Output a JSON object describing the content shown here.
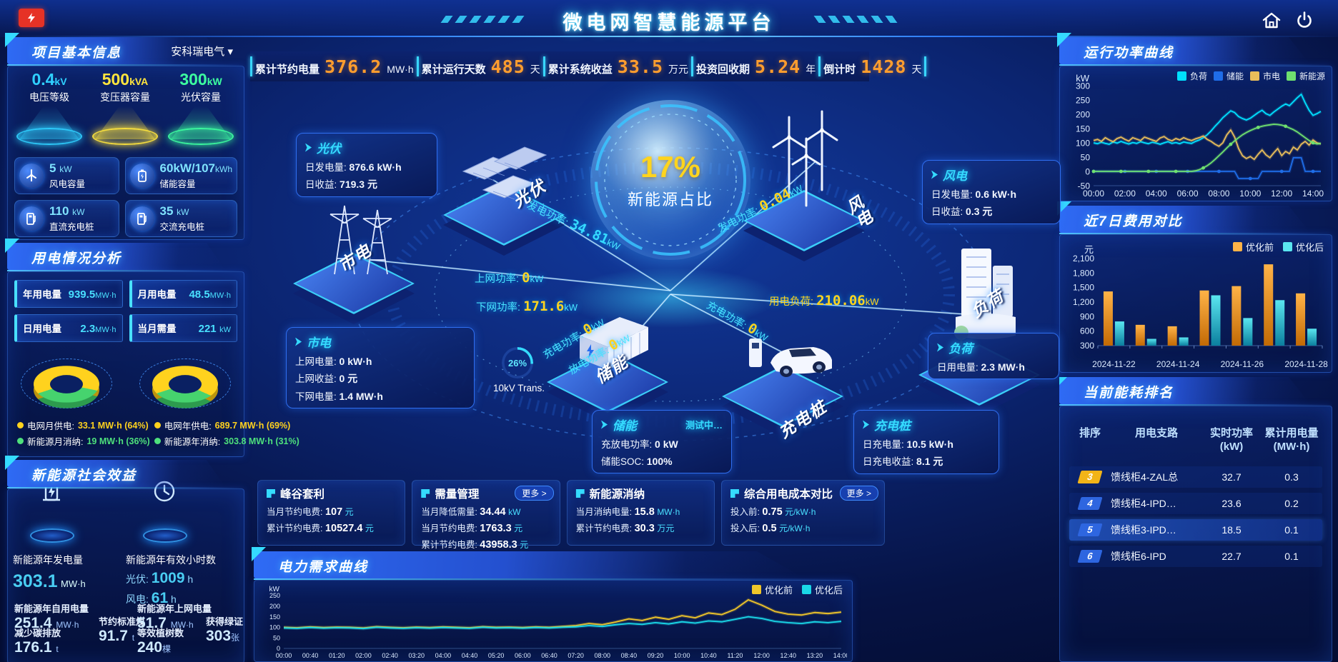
{
  "header": {
    "title": "微电网智慧能源平台"
  },
  "stats_bar": {
    "items": [
      {
        "label": "累计节约电量",
        "value": "376.2",
        "unit": "MW·h"
      },
      {
        "label": "累计运行天数",
        "value": "485",
        "unit": "天"
      },
      {
        "label": "累计系统收益",
        "value": "33.5",
        "unit": "万元"
      },
      {
        "label": "投资回收期",
        "value": "5.24",
        "unit": "年"
      },
      {
        "label": "倒计时",
        "value": "1428",
        "unit": "天"
      }
    ]
  },
  "project_panel": {
    "title": "项目基本信息",
    "company": "安科瑞电气",
    "spotlights": [
      {
        "value": "0.4",
        "unit": "kV",
        "label": "电压等级",
        "color": "#2fd0ff"
      },
      {
        "value": "500",
        "unit": "kVA",
        "label": "变压器容量",
        "color": "#ffe53d"
      },
      {
        "value": "300",
        "unit": "kW",
        "label": "光伏容量",
        "color": "#3dffa0"
      }
    ],
    "capacity_cards": [
      {
        "value": "5",
        "unit": "kW",
        "label": "风电容量",
        "icon": "wind-icon"
      },
      {
        "value": "60kW/107",
        "unit": "kWh",
        "label": "储能容量",
        "icon": "battery-icon"
      },
      {
        "value": "110",
        "unit": "kW",
        "label": "直流充电桩",
        "icon": "dc-charger-icon"
      },
      {
        "value": "35",
        "unit": "kW",
        "label": "交流充电桩",
        "icon": "ac-charger-icon"
      }
    ]
  },
  "power_panel": {
    "title": "用电情况分析",
    "metrics": [
      {
        "label": "年用电量",
        "value": "939.5",
        "unit": "MW·h"
      },
      {
        "label": "月用电量",
        "value": "48.5",
        "unit": "MW·h"
      },
      {
        "label": "日用电量",
        "value": "2.3",
        "unit": "MW·h"
      },
      {
        "label": "当月需量",
        "value": "221",
        "unit": "kW"
      }
    ],
    "donuts": [
      {
        "grid_label": "电网月供电:",
        "grid_value": "33.1 MW·h (64%)",
        "green_label": "新能源月消纳:",
        "green_value": "19 MW·h (36%)",
        "grid_pct": 64
      },
      {
        "grid_label": "电网年供电:",
        "grid_value": "689.7 MW·h (69%)",
        "green_label": "新能源年消纳:",
        "green_value": "303.8 MW·h (31%)",
        "grid_pct": 69
      }
    ]
  },
  "benefit_panel": {
    "title": "新能源社会效益",
    "feature1": {
      "label": "新能源年发电量",
      "value": "303.1",
      "unit": "MW·h"
    },
    "feature2": {
      "label": "新能源年有效小时数",
      "pv_label": "光伏:",
      "pv_value": "1009",
      "pv_unit": "h",
      "wind_label": "风电:",
      "wind_value": "61",
      "wind_unit": "h"
    },
    "stats": [
      {
        "label": "新能源年自用电量",
        "value": "251.4",
        "unit": "MW·h"
      },
      {
        "label": "减少碳排放",
        "value": "176.1",
        "unit": "t"
      },
      {
        "label": "节约标准煤",
        "value": "91.7",
        "unit": "t"
      },
      {
        "label": "新能源年上网电量",
        "value": "51.7",
        "unit": "MW·h"
      },
      {
        "label": "等效植树数",
        "value": "240",
        "unit": "棵"
      },
      {
        "label": "获得绿证",
        "value": "303",
        "unit": "张"
      }
    ]
  },
  "scene": {
    "center": {
      "percent": "17%",
      "label": "新能源占比"
    },
    "transformer": {
      "percent": "26%",
      "label": "10kV Trans."
    },
    "nodes": {
      "pv": "光伏",
      "wind": "风电",
      "grid": "市电",
      "ess": "储能",
      "load": "负荷",
      "ev": "充电桩"
    },
    "flows": {
      "pv": {
        "label": "发电功率:",
        "value": "34.81",
        "unit": "kW"
      },
      "grid_up": {
        "label": "上网功率:",
        "value": "0",
        "unit": "kW"
      },
      "grid_down": {
        "label": "下网功率:",
        "value": "171.6",
        "unit": "kW"
      },
      "wind": {
        "label": "发电功率:",
        "value": "0.04",
        "unit": "kW"
      },
      "load": {
        "label": "用电负荷:",
        "value": "210.06",
        "unit": "kW"
      },
      "ess_chg": {
        "label": "充电功率:",
        "value": "0",
        "unit": "kW"
      },
      "ess_dis": {
        "label": "放电功率:",
        "value": "0",
        "unit": "kW"
      },
      "ev_chg": {
        "label": "充电功率:",
        "value": "0",
        "unit": "kW"
      }
    },
    "boxes": {
      "pv": {
        "title": "光伏",
        "r1l": "日发电量:",
        "r1v": "876.6 kW·h",
        "r2l": "日收益:",
        "r2v": "719.3 元"
      },
      "wind": {
        "title": "风电",
        "r1l": "日发电量:",
        "r1v": "0.6 kW·h",
        "r2l": "日收益:",
        "r2v": "0.3 元"
      },
      "grid": {
        "title": "市电",
        "r1l": "上网电量:",
        "r1v": "0 kW·h",
        "r2l": "上网收益:",
        "r2v": "0 元",
        "r3l": "下网电量:",
        "r3v": "1.4 MW·h"
      },
      "ess": {
        "title": "储能",
        "badge": "测试中…",
        "r1l": "充放电功率:",
        "r1v": "0 kW",
        "r2l": "储能SOC:",
        "r2v": "100%"
      },
      "load": {
        "title": "负荷",
        "r1l": "日用电量:",
        "r1v": "2.3 MW·h"
      },
      "ev": {
        "title": "充电桩",
        "r1l": "日充电量:",
        "r1v": "10.5 kW·h",
        "r2l": "日充电收益:",
        "r2v": "8.1 元"
      }
    }
  },
  "benefit_cards": [
    {
      "title": "峰谷套利",
      "more": "",
      "rows": [
        {
          "label": "当月节约电费:",
          "value": "107",
          "unit": "元"
        },
        {
          "label": "累计节约电费:",
          "value": "10527.4",
          "unit": "元"
        }
      ]
    },
    {
      "title": "需量管理",
      "more": "更多 >",
      "rows": [
        {
          "label": "当月降低需量:",
          "value": "34.44",
          "unit": "kW"
        },
        {
          "label": "当月节约电费:",
          "value": "1763.3",
          "unit": "元"
        },
        {
          "label": "累计节约电费:",
          "value": "43958.3",
          "unit": "元"
        }
      ]
    },
    {
      "title": "新能源消纳",
      "more": "",
      "rows": [
        {
          "label": "当月消纳电量:",
          "value": "15.8",
          "unit": "MW·h"
        },
        {
          "label": "累计节约电费:",
          "value": "30.3",
          "unit": "万元"
        }
      ]
    },
    {
      "title": "综合用电成本对比",
      "more": "更多 >",
      "rows": [
        {
          "label": "投入前:",
          "value": "0.75",
          "unit": "元/kW·h"
        },
        {
          "label": "投入后:",
          "value": "0.5",
          "unit": "元/kW·h"
        }
      ]
    }
  ],
  "ranking_panel": {
    "title": "当前能耗排名",
    "columns": [
      {
        "l1": "排序",
        "l2": ""
      },
      {
        "l1": "用电支路",
        "l2": ""
      },
      {
        "l1": "实时功率",
        "l2": "(kW)"
      },
      {
        "l1": "累计用电量",
        "l2": "(MW·h)"
      }
    ],
    "rows": [
      {
        "rank": "3",
        "branch": "馈线柜4-ZAL总",
        "power": "32.7",
        "energy": "0.3",
        "badge": "#f2b418",
        "highlight": false
      },
      {
        "rank": "4",
        "branch": "馈线柜4-IPD…",
        "power": "23.6",
        "energy": "0.2",
        "badge": "#2e66e0",
        "highlight": false
      },
      {
        "rank": "5",
        "branch": "馈线柜3-IPD…",
        "power": "18.5",
        "energy": "0.1",
        "badge": "#2e66e0",
        "highlight": true
      },
      {
        "rank": "6",
        "branch": "馈线柜6-IPD",
        "power": "22.7",
        "energy": "0.1",
        "badge": "#2e66e0",
        "highlight": false
      }
    ]
  },
  "chart_data": [
    {
      "id": "chart-power",
      "type": "line",
      "title": "运行功率曲线",
      "ylabel": "kW",
      "ylim": [
        -50,
        300
      ],
      "yticks": [
        300,
        250,
        200,
        150,
        100,
        50,
        0,
        -50
      ],
      "xticks": [
        "00:00",
        "02:00",
        "04:00",
        "06:00",
        "08:00",
        "10:00",
        "12:00",
        "14:00"
      ],
      "tick_hours": [
        0,
        2,
        4,
        6,
        8,
        10,
        12,
        14
      ],
      "dt": 0.25,
      "grid": false,
      "legend_position": "top",
      "series": [
        {
          "name": "负荷",
          "color": "#00e0ff",
          "marker_every": 0,
          "values": [
            100,
            97,
            102,
            98,
            95,
            103,
            99,
            105,
            100,
            96,
            101,
            98,
            104,
            100,
            97,
            102,
            99,
            95,
            100,
            104,
            98,
            101,
            97,
            103,
            100,
            98,
            105,
            110,
            118,
            128,
            142,
            158,
            172,
            188,
            200,
            212,
            206,
            192,
            185,
            180,
            186,
            196,
            206,
            214,
            202,
            196,
            208,
            218,
            228,
            236,
            230,
            244,
            258,
            270,
            240,
            214,
            196,
            202,
            210
          ]
        },
        {
          "name": "储能",
          "color": "#1f6de8",
          "marker_every": 8,
          "values": [
            0,
            0,
            0,
            0,
            0,
            0,
            0,
            0,
            0,
            0,
            0,
            0,
            0,
            0,
            0,
            0,
            0,
            0,
            0,
            0,
            0,
            0,
            0,
            0,
            0,
            0,
            0,
            0,
            0,
            0,
            0,
            0,
            0,
            0,
            0,
            0,
            0,
            -25,
            -25,
            -25,
            -25,
            -25,
            -25,
            0,
            0,
            0,
            0,
            0,
            0,
            0,
            0,
            48,
            48,
            48,
            0,
            0,
            0,
            0,
            0
          ]
        },
        {
          "name": "市电",
          "color": "#e8bd5a",
          "marker_every": 0,
          "values": [
            108,
            112,
            105,
            118,
            110,
            104,
            115,
            120,
            112,
            106,
            118,
            113,
            108,
            120,
            115,
            110,
            105,
            117,
            122,
            112,
            107,
            115,
            110,
            118,
            112,
            108,
            114,
            118,
            124,
            112,
            105,
            95,
            88,
            100,
            128,
            145,
            120,
            80,
            55,
            45,
            52,
            42,
            60,
            75,
            58,
            48,
            65,
            80,
            55,
            70,
            62,
            85,
            75,
            95,
            105,
            92,
            110,
            100,
            96
          ]
        },
        {
          "name": "新能源",
          "color": "#6fe06f",
          "marker_every": 7,
          "values": [
            0,
            0,
            0,
            0,
            0,
            0,
            0,
            0,
            0,
            0,
            0,
            0,
            0,
            0,
            0,
            0,
            0,
            0,
            0,
            0,
            0,
            0,
            0,
            0,
            0,
            0,
            2,
            6,
            12,
            20,
            30,
            42,
            55,
            68,
            82,
            95,
            107,
            118,
            128,
            136,
            143,
            149,
            154,
            158,
            161,
            163,
            165,
            164,
            162,
            158,
            152,
            146,
            138,
            128,
            118,
            108,
            100,
            96,
            98
          ]
        }
      ]
    },
    {
      "id": "chart-cost",
      "type": "bar",
      "title": "近7日费用对比",
      "ylabel": "元",
      "ylim": [
        300,
        2100
      ],
      "yticks": [
        2100,
        1800,
        1500,
        1200,
        900,
        600,
        300
      ],
      "ytick_labels": [
        "2,100",
        "1,800",
        "1,500",
        "1,200",
        "900",
        "600",
        "300"
      ],
      "categories": [
        "2024-11-22",
        "2024-11-23",
        "2024-11-24",
        "2024-11-25",
        "2024-11-26",
        "2024-11-27",
        "2024-11-28"
      ],
      "label_every": 2,
      "grid": false,
      "legend_position": "top",
      "series": [
        {
          "name": "优化前",
          "color": "#ffb347",
          "color2": "#c26a05",
          "values": [
            1420,
            730,
            700,
            1440,
            1530,
            1980,
            1380
          ]
        },
        {
          "name": "优化后",
          "color": "#5ae6f0",
          "color2": "#0b7f9e",
          "values": [
            800,
            440,
            470,
            1340,
            870,
            1240,
            650
          ]
        }
      ]
    },
    {
      "id": "chart-demand",
      "type": "line",
      "title": "电力需求曲线",
      "ylabel": "kW",
      "ylim": [
        0,
        250
      ],
      "yticks": [
        250,
        200,
        150,
        100,
        50,
        0
      ],
      "xticks": [
        "00:00",
        "00:40",
        "01:20",
        "02:00",
        "02:40",
        "03:20",
        "04:00",
        "04:40",
        "05:20",
        "06:00",
        "06:40",
        "07:20",
        "08:00",
        "08:40",
        "09:20",
        "10:00",
        "10:40",
        "11:20",
        "12:00",
        "12:40",
        "13:20",
        "14:00"
      ],
      "tick_hours": [
        0,
        0.667,
        1.333,
        2,
        2.667,
        3.333,
        4,
        4.667,
        5.333,
        6,
        6.667,
        7.333,
        8,
        8.667,
        9.333,
        10,
        10.667,
        11.333,
        12,
        12.667,
        13.333,
        14
      ],
      "dt": 0.3333,
      "grid": false,
      "legend_position": "top-right",
      "series": [
        {
          "name": "优化前",
          "color": "#f0c62a",
          "marker_every": 0,
          "values": [
            100,
            98,
            102,
            99,
            101,
            100,
            97,
            103,
            100,
            98,
            101,
            99,
            102,
            100,
            98,
            103,
            100,
            101,
            99,
            102,
            100,
            104,
            108,
            118,
            112,
            125,
            140,
            132,
            148,
            138,
            155,
            145,
            168,
            160,
            185,
            230,
            205,
            175,
            162,
            158,
            170,
            165,
            172
          ]
        },
        {
          "name": "优化后",
          "color": "#1ad8e8",
          "marker_every": 0,
          "values": [
            97,
            95,
            99,
            96,
            98,
            97,
            94,
            100,
            97,
            95,
            98,
            96,
            99,
            97,
            95,
            100,
            97,
            98,
            96,
            99,
            97,
            100,
            102,
            108,
            104,
            112,
            118,
            114,
            122,
            116,
            126,
            120,
            130,
            126,
            138,
            150,
            142,
            128,
            122,
            118,
            126,
            122,
            128
          ]
        }
      ]
    }
  ]
}
